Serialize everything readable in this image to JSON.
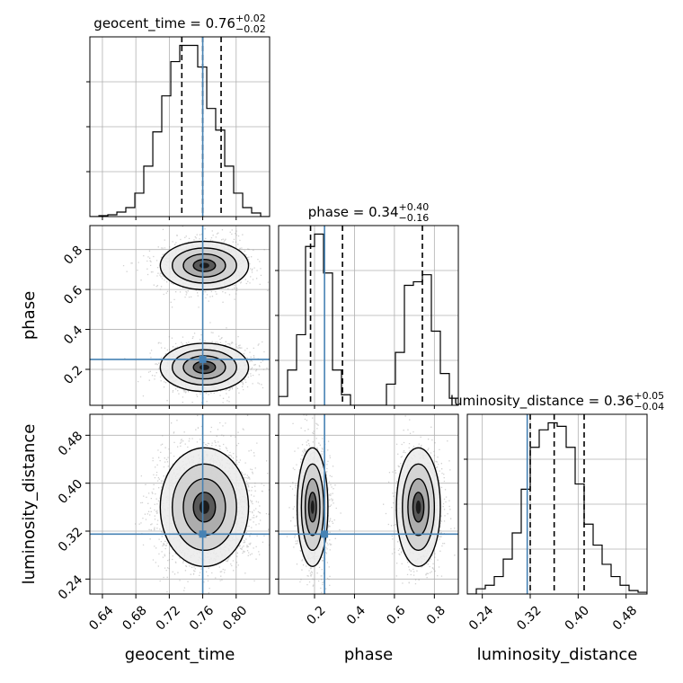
{
  "chart_data": {
    "type": "corner",
    "parameters": [
      "geocent_time",
      "phase",
      "luminosity_distance"
    ],
    "truth": {
      "geocent_time": 0.76,
      "phase": 0.25,
      "luminosity_distance": 0.315
    },
    "colors": {
      "hist": "#000000",
      "truth": "#4682b4",
      "grid": "#b0b0b0",
      "quantile": "#000000"
    },
    "grid": true,
    "titles": [
      {
        "param": "geocent_time",
        "text": "geocent_time = 0.76",
        "sup": "+0.02",
        "sub": "−0.02"
      },
      {
        "param": "phase",
        "text": "phase = 0.34",
        "sup": "+0.40",
        "sub": "−0.16"
      },
      {
        "param": "luminosity_distance",
        "text": "luminosity_distance = 0.36",
        "sup": "+0.05",
        "sub": "−0.04"
      }
    ],
    "axes": {
      "geocent_time": {
        "range": [
          0.625,
          0.84
        ],
        "ticks": [
          "0.64",
          "0.68",
          "0.72",
          "0.76",
          "0.80"
        ]
      },
      "phase": {
        "range": [
          0.02,
          0.92
        ],
        "ticks": [
          "0.2",
          "0.4",
          "0.6",
          "0.8"
        ]
      },
      "luminosity_distance": {
        "range": [
          0.215,
          0.515
        ],
        "ticks": [
          "0.24",
          "0.32",
          "0.40",
          "0.48"
        ]
      }
    },
    "histograms": {
      "geocent_time": {
        "edges": [
          0.625,
          0.6358,
          0.6465,
          0.6573,
          0.668,
          0.6788,
          0.6895,
          0.7003,
          0.711,
          0.7218,
          0.7325,
          0.7433,
          0.754,
          0.7648,
          0.7755,
          0.7863,
          0.797,
          0.8078,
          0.8185,
          0.8293,
          0.84
        ],
        "counts": [
          0,
          0.005,
          0.01,
          0.025,
          0.05,
          0.13,
          0.28,
          0.47,
          0.67,
          0.86,
          0.95,
          0.95,
          0.83,
          0.6,
          0.48,
          0.28,
          0.13,
          0.05,
          0.02,
          0
        ],
        "quantiles": [
          0.735,
          0.76,
          0.782
        ]
      },
      "phase": {
        "edges": [
          0.02,
          0.065,
          0.11,
          0.155,
          0.2,
          0.245,
          0.29,
          0.335,
          0.38,
          0.425,
          0.47,
          0.515,
          0.56,
          0.605,
          0.65,
          0.695,
          0.74,
          0.785,
          0.83,
          0.875,
          0.92
        ],
        "counts": [
          0.05,
          0.2,
          0.4,
          0.9,
          0.97,
          0.75,
          0.2,
          0.06,
          0,
          0,
          0,
          0,
          0.12,
          0.3,
          0.68,
          0.7,
          0.74,
          0.42,
          0.18,
          0.04
        ],
        "quantiles": [
          0.18,
          0.34,
          0.74
        ]
      },
      "luminosity_distance": {
        "edges": [
          0.215,
          0.23,
          0.245,
          0.26,
          0.275,
          0.29,
          0.305,
          0.32,
          0.335,
          0.35,
          0.365,
          0.38,
          0.395,
          0.41,
          0.425,
          0.44,
          0.455,
          0.47,
          0.485,
          0.5,
          0.515
        ],
        "counts": [
          0,
          0.03,
          0.05,
          0.1,
          0.2,
          0.35,
          0.6,
          0.84,
          0.94,
          0.98,
          0.96,
          0.84,
          0.63,
          0.4,
          0.28,
          0.17,
          0.1,
          0.05,
          0.02,
          0.01
        ],
        "quantiles": [
          0.32,
          0.36,
          0.41
        ]
      }
    },
    "modes": {
      "geocent_time|phase": [
        {
          "x": 0.762,
          "y": 0.72,
          "sx": 0.024,
          "sy": 0.055,
          "w": 0.5
        },
        {
          "x": 0.762,
          "y": 0.21,
          "sx": 0.024,
          "sy": 0.055,
          "w": 0.5
        }
      ],
      "geocent_time|luminosity_distance": [
        {
          "x": 0.762,
          "y": 0.36,
          "sx": 0.024,
          "sy": 0.045,
          "w": 1.0
        }
      ],
      "phase|luminosity_distance": [
        {
          "x": 0.19,
          "y": 0.36,
          "sx": 0.035,
          "sy": 0.045,
          "w": 0.5
        },
        {
          "x": 0.72,
          "y": 0.36,
          "sx": 0.05,
          "sy": 0.045,
          "w": 0.5
        }
      ]
    }
  }
}
